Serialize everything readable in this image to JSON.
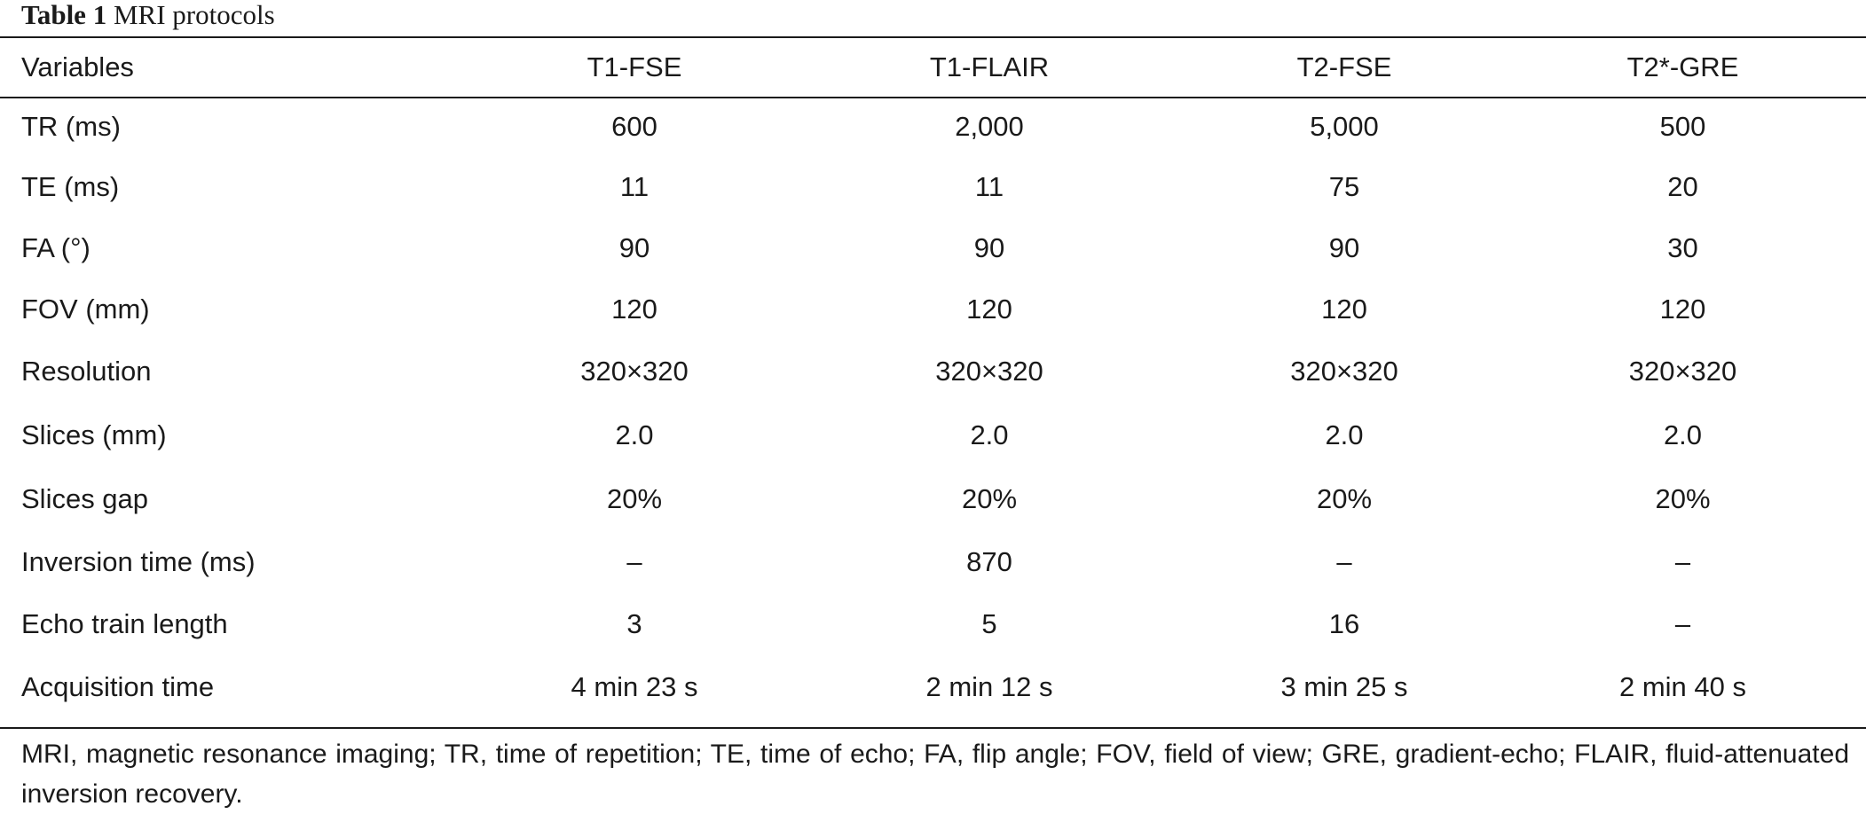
{
  "caption": {
    "label": "Table 1",
    "title": "MRI protocols"
  },
  "table": {
    "headers": [
      "Variables",
      "T1-FSE",
      "T1-FLAIR",
      "T2-FSE",
      "T2*-GRE"
    ],
    "rows": [
      [
        "TR (ms)",
        "600",
        "2,000",
        "5,000",
        "500"
      ],
      [
        "TE (ms)",
        "11",
        "11",
        "75",
        "20"
      ],
      [
        "FA (°)",
        "90",
        "90",
        "90",
        "30"
      ],
      [
        "FOV (mm)",
        "120",
        "120",
        "120",
        "120"
      ],
      [
        "Resolution",
        "320×320",
        "320×320",
        "320×320",
        "320×320"
      ],
      [
        "Slices (mm)",
        "2.0",
        "2.0",
        "2.0",
        "2.0"
      ],
      [
        "Slices gap",
        "20%",
        "20%",
        "20%",
        "20%"
      ],
      [
        "Inversion time (ms)",
        "–",
        "870",
        "–",
        "–"
      ],
      [
        "Echo train length",
        "3",
        "5",
        "16",
        "–"
      ],
      [
        "Acquisition time",
        "4 min 23 s",
        "2 min 12 s",
        "3 min 25 s",
        "2 min 40 s"
      ]
    ]
  },
  "footnote": "MRI, magnetic resonance imaging; TR, time of repetition; TE, time of echo; FA, flip angle; FOV, field of view; GRE, gradient-echo; FLAIR, fluid-attenuated inversion recovery."
}
